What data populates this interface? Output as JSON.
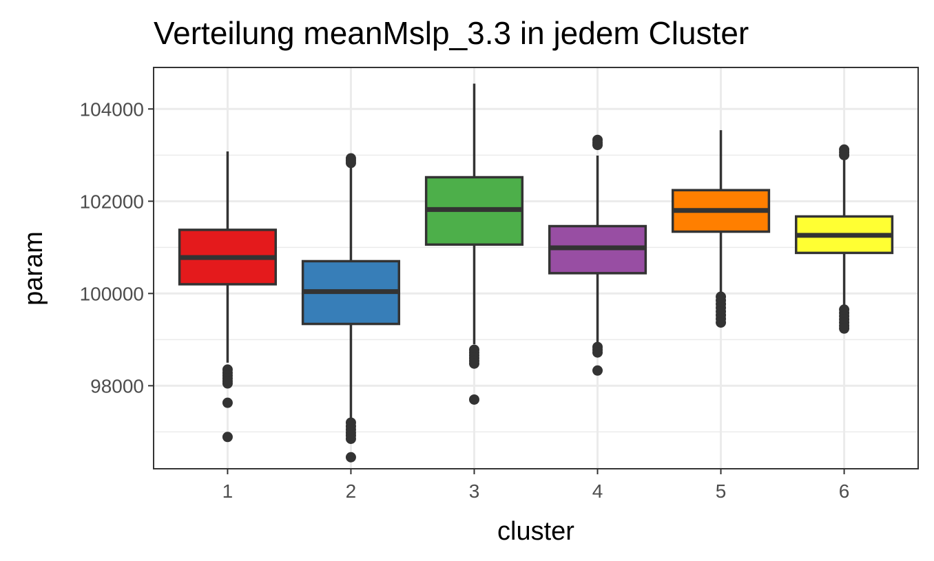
{
  "chart_data": {
    "type": "boxplot",
    "title": "Verteilung meanMslp_3.3 in jedem Cluster",
    "xlabel": "cluster",
    "ylabel": "param",
    "ylim": [
      96200,
      104900
    ],
    "yticks": [
      98000,
      100000,
      102000,
      104000
    ],
    "yticks_minor": [
      97000,
      99000,
      101000,
      103000
    ],
    "categories": [
      "1",
      "2",
      "3",
      "4",
      "5",
      "6"
    ],
    "grid": true,
    "legend": "none",
    "colors": {
      "outline": "#333333",
      "grid": "#ebebeb",
      "panel_border": "#333333"
    },
    "boxes": [
      {
        "cluster": "1",
        "color": "#e41a1c",
        "whisker_low": 98500,
        "q1": 100200,
        "median": 100780,
        "q3": 101380,
        "whisker_high": 103080,
        "outliers": [
          98350,
          98280,
          98220,
          98160,
          98100,
          98050,
          97630,
          96890
        ]
      },
      {
        "cluster": "2",
        "color": "#377eb8",
        "whisker_low": 97300,
        "q1": 99340,
        "median": 100040,
        "q3": 100700,
        "whisker_high": 102760,
        "outliers": [
          102930,
          102880,
          102830,
          97200,
          97120,
          97050,
          96980,
          96920,
          96850,
          96450
        ]
      },
      {
        "cluster": "3",
        "color": "#4daf4a",
        "whisker_low": 98900,
        "q1": 101060,
        "median": 101820,
        "q3": 102520,
        "whisker_high": 104550,
        "outliers": [
          98780,
          98720,
          98660,
          98600,
          98540,
          98480,
          97700
        ]
      },
      {
        "cluster": "4",
        "color": "#984ea3",
        "whisker_low": 98900,
        "q1": 100440,
        "median": 100990,
        "q3": 101460,
        "whisker_high": 102990,
        "outliers": [
          103330,
          103270,
          103220,
          98840,
          98780,
          98720,
          98330
        ]
      },
      {
        "cluster": "5",
        "color": "#ff7f00",
        "whisker_low": 100000,
        "q1": 101340,
        "median": 101800,
        "q3": 102240,
        "whisker_high": 103540,
        "outliers": [
          99930,
          99850,
          99770,
          99690,
          99610,
          99530,
          99450,
          99370
        ]
      },
      {
        "cluster": "6",
        "color": "#ffff33",
        "whisker_low": 99720,
        "q1": 100880,
        "median": 101260,
        "q3": 101670,
        "whisker_high": 102940,
        "outliers": [
          103120,
          103060,
          103000,
          99650,
          99580,
          99510,
          99440,
          99370,
          99300,
          99240
        ]
      }
    ]
  }
}
